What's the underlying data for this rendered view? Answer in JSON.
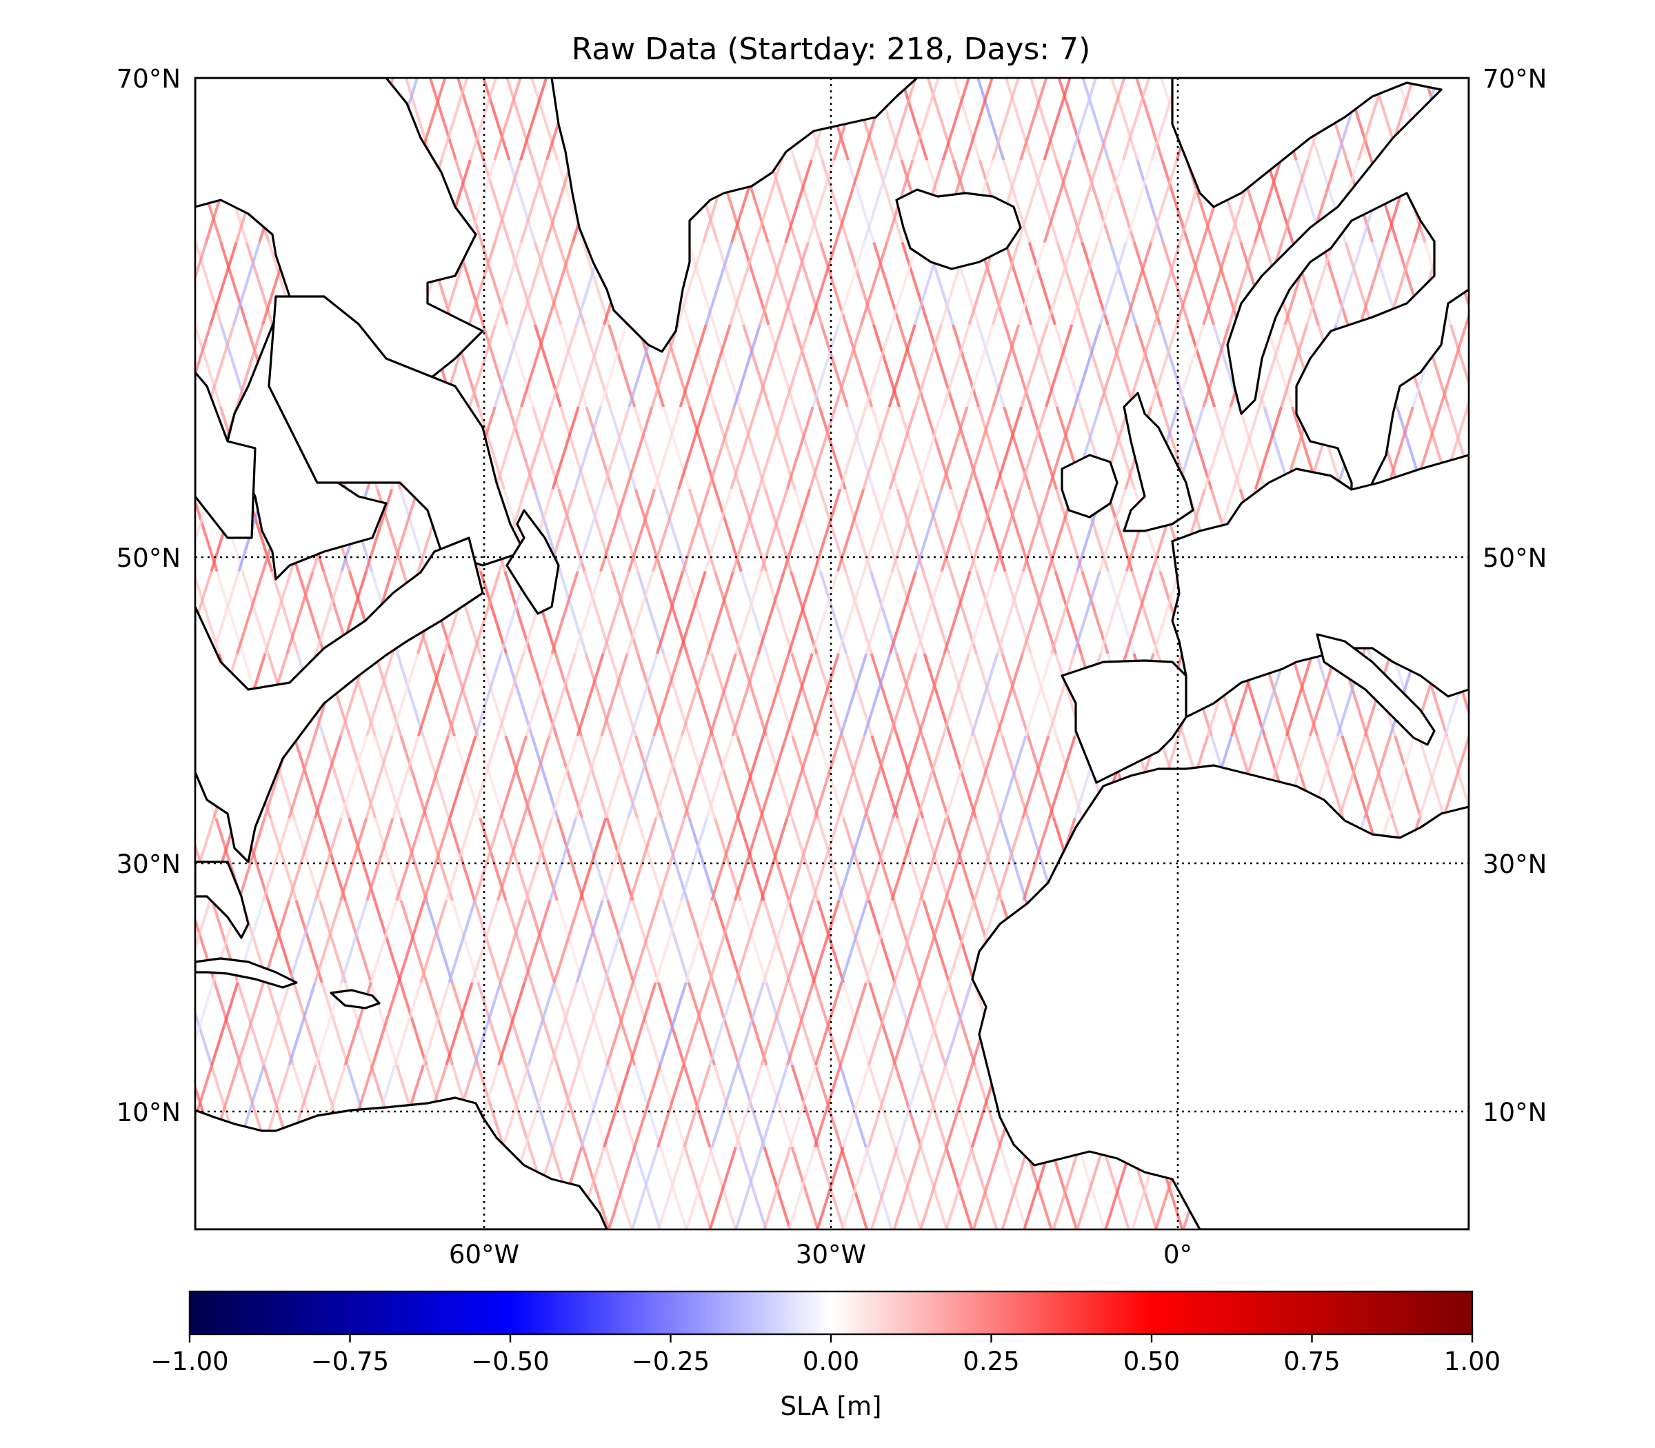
{
  "figure": {
    "title": "Raw Data (Startday: 218, Days: 7)"
  },
  "map": {
    "lat_ticks": [
      "70°N",
      "50°N",
      "30°N",
      "10°N"
    ],
    "lon_ticks": [
      "60°W",
      "30°W",
      "0°"
    ],
    "projection": "Mercator",
    "gridlines": "dotted",
    "coastlines": true
  },
  "chart_data": {
    "type": "heatmap",
    "title": "Raw Data (Startday: 218, Days: 7)",
    "xlabel": "",
    "ylabel": "",
    "lon_range": [
      -85,
      25
    ],
    "lat_range": [
      0,
      70
    ],
    "lat_ticks": [
      70,
      50,
      30,
      10
    ],
    "lon_ticks": [
      -60,
      -30,
      0
    ],
    "colorbar": {
      "label": "SLA [m]",
      "colormap": "seismic",
      "range": [
        -1.0,
        1.0
      ],
      "ticks": [
        -1.0,
        -0.75,
        -0.5,
        -0.25,
        0.0,
        0.25,
        0.5,
        0.75,
        1.0
      ],
      "tick_labels": [
        "−1.00",
        "−0.75",
        "−0.50",
        "−0.25",
        "0.00",
        "0.25",
        "0.50",
        "0.75",
        "1.00"
      ],
      "orientation": "horizontal"
    },
    "data_description_values": {
      "dominant_sign": "positive",
      "typical_range_m": [
        0.05,
        0.35
      ],
      "max_m": 0.5,
      "min_m": -0.25
    }
  },
  "colors": {
    "cmap_stops": [
      "#00004c",
      "#0000ff",
      "#ffffff",
      "#ff0000",
      "#7f0000"
    ],
    "land": "#ffffff",
    "coast": "#000000"
  }
}
